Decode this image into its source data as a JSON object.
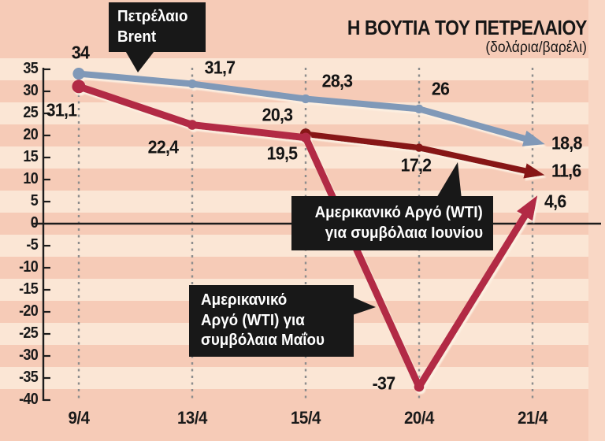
{
  "page": {
    "title": "Η ΒΟΥΤΙΑ ΤΟΥ ΠΕΤΡΕΛΑΙΟΥ",
    "subtitle": "(δολάρια/βαρέλι)"
  },
  "chart_data": {
    "type": "line",
    "title": "Η ΒΟΥΤΙΑ ΤΟΥ ΠΕΤΡΕΛΑΙΟΥ",
    "unit_label": "(δολάρια/βαρέλι)",
    "categories": [
      "9/4",
      "13/4",
      "15/4",
      "20/4",
      "21/4"
    ],
    "y_ticks": [
      35,
      30,
      25,
      20,
      15,
      10,
      5,
      0,
      -5,
      -10,
      -15,
      -20,
      -25,
      -30,
      -35,
      -40
    ],
    "ylim": [
      -40,
      35
    ],
    "grid": "dashed-vertical-per-category",
    "series": [
      {
        "name": "Πετρέλαιο Brent",
        "color": "#8099b8",
        "values": [
          34,
          31.7,
          28.3,
          26,
          18.8
        ]
      },
      {
        "name": "Αμερικανικό Αργό (WTI) για συμβόλαια Ιουνίου",
        "color": "#871619",
        "values": [
          null,
          null,
          20.3,
          17.2,
          11.6
        ]
      },
      {
        "name": "Αμερικανικό Αργό (WTI) για συμβόλαια Μαΐου",
        "color": "#b22a45",
        "values": [
          31.1,
          22.4,
          19.5,
          -37,
          4.6
        ]
      }
    ],
    "callouts": {
      "brent": {
        "lines": [
          "Πετρέλαιο",
          "Brent"
        ]
      },
      "wti_june": {
        "lines": [
          "Αμερικανικό Αργό (WTI)",
          "για συμβόλαια Ιουνίου"
        ]
      },
      "wti_may": {
        "lines": [
          "Αμερικανικό",
          "Αργό (WTI) για",
          "συμβόλαια Μαΐου"
        ]
      }
    },
    "colors": {
      "background": "#f6cbb7",
      "stripe": "#fbe6d5",
      "right_margin": "#f9d7c5",
      "callout_bg": "#181818",
      "text": "#161616",
      "gridline": "#8d8d8d",
      "axis": "#1c1c1c",
      "line_shadow": "#fdf0e2"
    }
  }
}
